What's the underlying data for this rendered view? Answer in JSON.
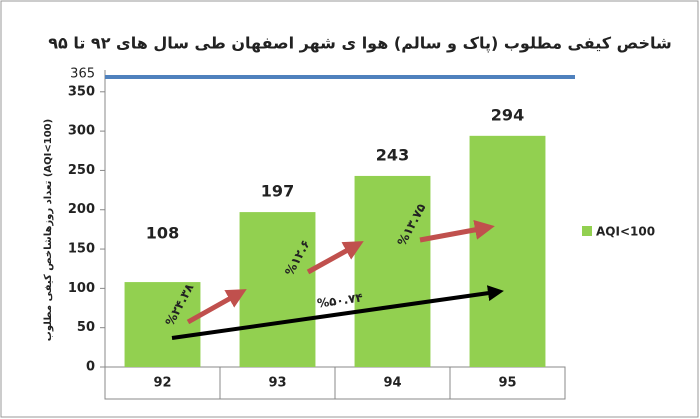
{
  "chart_data": {
    "type": "bar",
    "title": "شاخص کیفی مطلوب (پاک و سالم) هوا ی شهر اصفهان طی سال های ۹۲ تا ۹۵",
    "y_label": "تعداد روزهاشاخص کیفی مطلوب (AQI<100)",
    "categories": [
      "92",
      "93",
      "94",
      "95"
    ],
    "series": [
      {
        "name": "AQI<100",
        "color": "#92d050",
        "values": [
          108,
          197,
          243,
          294
        ]
      }
    ],
    "ylim": [
      0,
      365
    ],
    "yticks": [
      0,
      50,
      100,
      150,
      200,
      250,
      300,
      350
    ],
    "reference_line": {
      "value": 365,
      "color": "#4f81bd"
    },
    "annotations": [
      {
        "text": "%۲۴.۳۸",
        "color": "#c0504d"
      },
      {
        "text": "%۱۲.۶",
        "color": "#c0504d"
      },
      {
        "text": "%۱۳.۷۵",
        "color": "#c0504d"
      },
      {
        "text": "%۵۰.۷۴",
        "color": "#000000"
      }
    ]
  }
}
